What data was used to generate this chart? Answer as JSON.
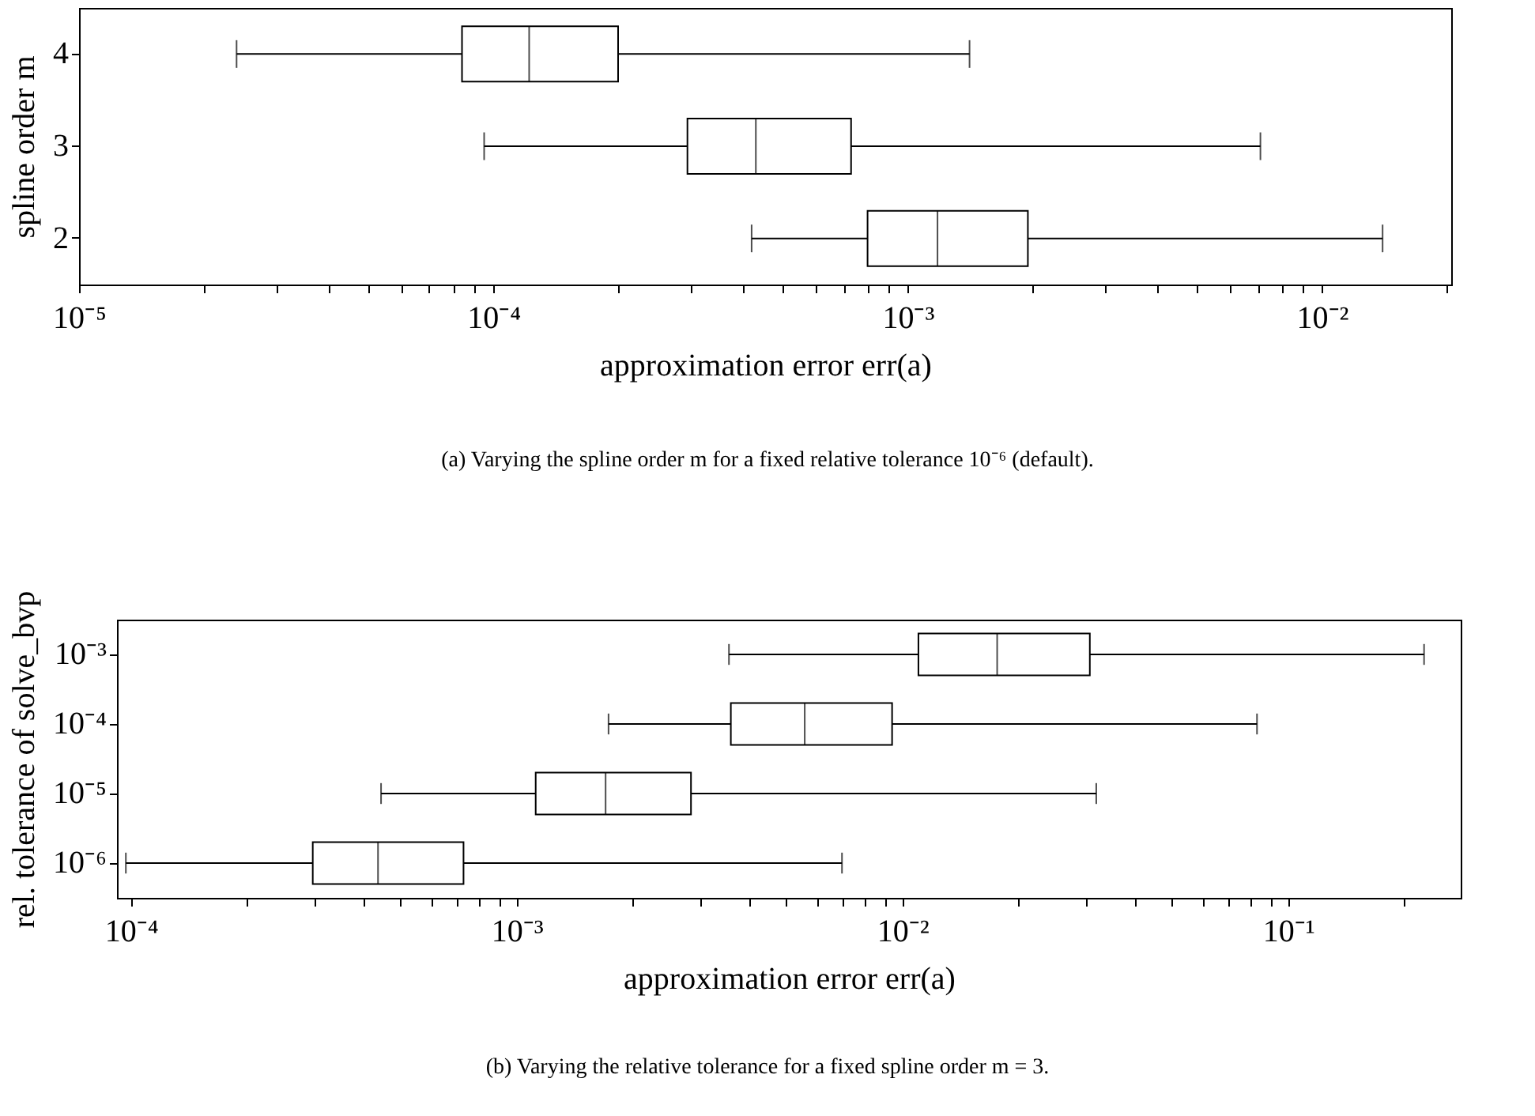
{
  "chart_data": [
    {
      "type": "box",
      "orientation": "horizontal",
      "log": "x",
      "grid": false,
      "xlabel": "approximation error err(a)",
      "ylabel": "spline order m",
      "categories": [
        "4",
        "3",
        "2"
      ],
      "boxes": [
        {
          "low": 2.4e-05,
          "q1": 8.4e-05,
          "median": 0.000122,
          "q3": 0.0002,
          "high": 0.00141
        },
        {
          "low": 9.5e-05,
          "q1": 0.000294,
          "median": 0.00043,
          "q3": 0.00073,
          "high": 0.0071
        },
        {
          "low": 0.00042,
          "q1": 0.0008,
          "median": 0.00118,
          "q3": 0.00195,
          "high": 0.014
        }
      ],
      "xlim": [
        1e-05,
        0.0205
      ],
      "xticks": [
        {
          "value": 1e-05,
          "label": "10⁻⁵"
        },
        {
          "value": 2e-05,
          "label": null
        },
        {
          "value": 3e-05,
          "label": null
        },
        {
          "value": 4e-05,
          "label": null
        },
        {
          "value": 5e-05,
          "label": null
        },
        {
          "value": 6e-05,
          "label": null
        },
        {
          "value": 7e-05,
          "label": null
        },
        {
          "value": 8e-05,
          "label": null
        },
        {
          "value": 9e-05,
          "label": null
        },
        {
          "value": 0.0001,
          "label": "10⁻⁴"
        },
        {
          "value": 0.0002,
          "label": null
        },
        {
          "value": 0.0003,
          "label": null
        },
        {
          "value": 0.0004,
          "label": null
        },
        {
          "value": 0.0005,
          "label": null
        },
        {
          "value": 0.0006,
          "label": null
        },
        {
          "value": 0.0007,
          "label": null
        },
        {
          "value": 0.0008,
          "label": null
        },
        {
          "value": 0.0009,
          "label": null
        },
        {
          "value": 0.001,
          "label": "10⁻³"
        },
        {
          "value": 0.002,
          "label": null
        },
        {
          "value": 0.003,
          "label": null
        },
        {
          "value": 0.004,
          "label": null
        },
        {
          "value": 0.005,
          "label": null
        },
        {
          "value": 0.006,
          "label": null
        },
        {
          "value": 0.007,
          "label": null
        },
        {
          "value": 0.008,
          "label": null
        },
        {
          "value": 0.009,
          "label": null
        },
        {
          "value": 0.01,
          "label": "10⁻²"
        },
        {
          "value": 0.02,
          "label": null
        }
      ],
      "annotations": [
        "(a) Varying the spline order m for a fixed relative tolerance 10⁻⁶ (default)."
      ]
    },
    {
      "type": "box",
      "orientation": "horizontal",
      "log": "x",
      "grid": false,
      "xlabel": "approximation error err(a)",
      "ylabel": "rel. tolerance of solve_bvp",
      "categories": [
        "10⁻³",
        "10⁻⁴",
        "10⁻⁵",
        "10⁻⁶"
      ],
      "boxes": [
        {
          "low": 0.00355,
          "q1": 0.011,
          "median": 0.0176,
          "q3": 0.0306,
          "high": 0.225
        },
        {
          "low": 0.00173,
          "q1": 0.00359,
          "median": 0.00558,
          "q3": 0.0094,
          "high": 0.083
        },
        {
          "low": 0.000445,
          "q1": 0.00112,
          "median": 0.0017,
          "q3": 0.00283,
          "high": 0.0318
        },
        {
          "low": 9.7e-05,
          "q1": 0.000296,
          "median": 0.000437,
          "q3": 0.000728,
          "high": 0.00697
        }
      ],
      "xlim": [
        9.2e-05,
        0.28
      ],
      "xticks": [
        {
          "value": 0.0001,
          "label": "10⁻⁴"
        },
        {
          "value": 0.0002,
          "label": null
        },
        {
          "value": 0.0003,
          "label": null
        },
        {
          "value": 0.0004,
          "label": null
        },
        {
          "value": 0.0005,
          "label": null
        },
        {
          "value": 0.0006,
          "label": null
        },
        {
          "value": 0.0007,
          "label": null
        },
        {
          "value": 0.0008,
          "label": null
        },
        {
          "value": 0.0009,
          "label": null
        },
        {
          "value": 0.001,
          "label": "10⁻³"
        },
        {
          "value": 0.002,
          "label": null
        },
        {
          "value": 0.003,
          "label": null
        },
        {
          "value": 0.004,
          "label": null
        },
        {
          "value": 0.005,
          "label": null
        },
        {
          "value": 0.006,
          "label": null
        },
        {
          "value": 0.007,
          "label": null
        },
        {
          "value": 0.008,
          "label": null
        },
        {
          "value": 0.009,
          "label": null
        },
        {
          "value": 0.01,
          "label": "10⁻²"
        },
        {
          "value": 0.02,
          "label": null
        },
        {
          "value": 0.03,
          "label": null
        },
        {
          "value": 0.04,
          "label": null
        },
        {
          "value": 0.05,
          "label": null
        },
        {
          "value": 0.06,
          "label": null
        },
        {
          "value": 0.07,
          "label": null
        },
        {
          "value": 0.08,
          "label": null
        },
        {
          "value": 0.09,
          "label": null
        },
        {
          "value": 0.1,
          "label": "10⁻¹"
        },
        {
          "value": 0.2,
          "label": null
        }
      ],
      "annotations": [
        "(b) Varying the relative tolerance for a fixed spline order m = 3."
      ]
    }
  ]
}
